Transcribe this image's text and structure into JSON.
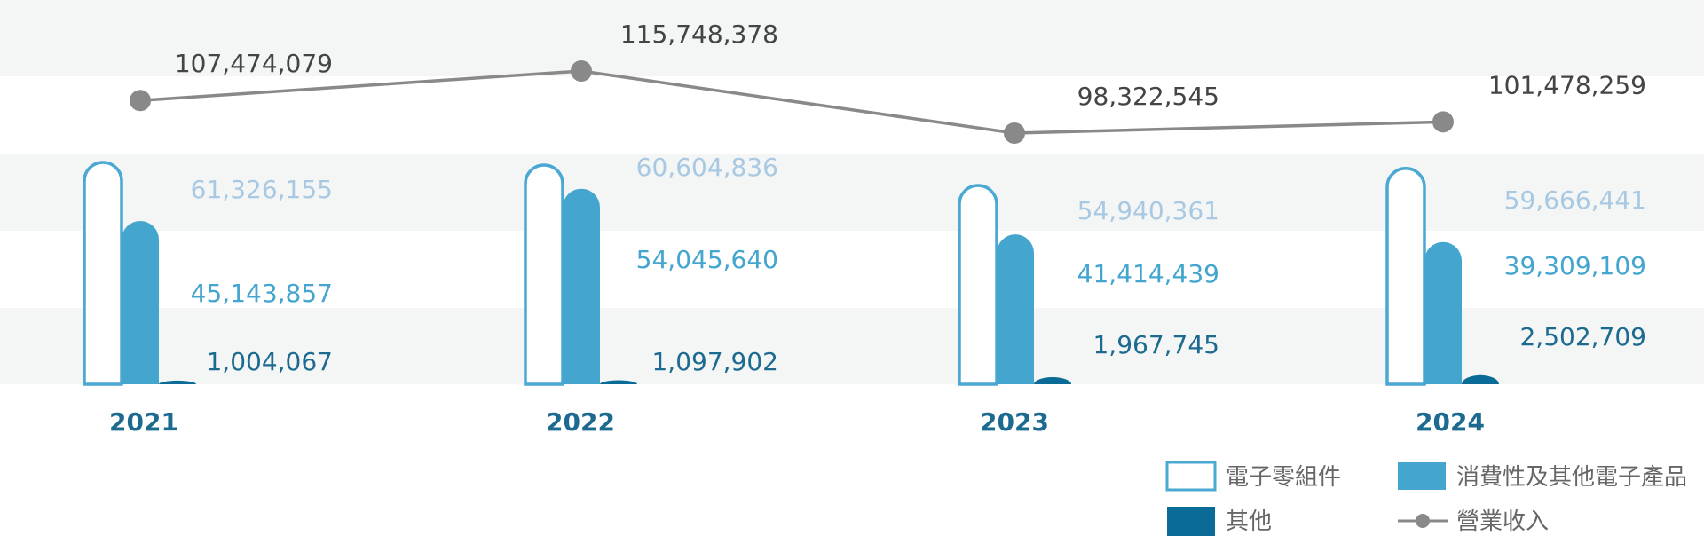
{
  "chart_data": {
    "type": "bar",
    "categories": [
      "2021",
      "2022",
      "2023",
      "2024"
    ],
    "series": [
      {
        "name": "電子零組件",
        "values": [
          61326155,
          60604836,
          54940361,
          59666441
        ],
        "color": "#ffffff",
        "stroke": "#4aa8d2",
        "label_color": "#a9c9e3"
      },
      {
        "name": "消費性及其他電子產品",
        "values": [
          45143857,
          54045640,
          41414439,
          39309109
        ],
        "color": "#44a6cf",
        "label_color": "#44a6cf"
      },
      {
        "name": "其他",
        "values": [
          1004067,
          1097902,
          1967745,
          2502709
        ],
        "color": "#0a6c96",
        "label_color": "#1d6a90"
      }
    ],
    "line_series": {
      "name": "營業收入",
      "values": [
        107474079,
        115748378,
        98322545,
        101478259
      ],
      "color": "#898989",
      "label_color": "#444444"
    },
    "labels": {
      "bars": [
        [
          "61,326,155",
          "60,604,836",
          "54,940,361",
          "59,666,441"
        ],
        [
          "45,143,857",
          "54,045,640",
          "41,414,439",
          "39,309,109"
        ],
        [
          "1,004,067",
          "1,097,902",
          "1,967,745",
          "2,502,709"
        ]
      ],
      "line": [
        "107,474,079",
        "115,748,378",
        "98,322,545",
        "101,478,259"
      ]
    },
    "legend_placement": "bottom-right",
    "stripes": true,
    "year_color": "#1d6a90"
  }
}
